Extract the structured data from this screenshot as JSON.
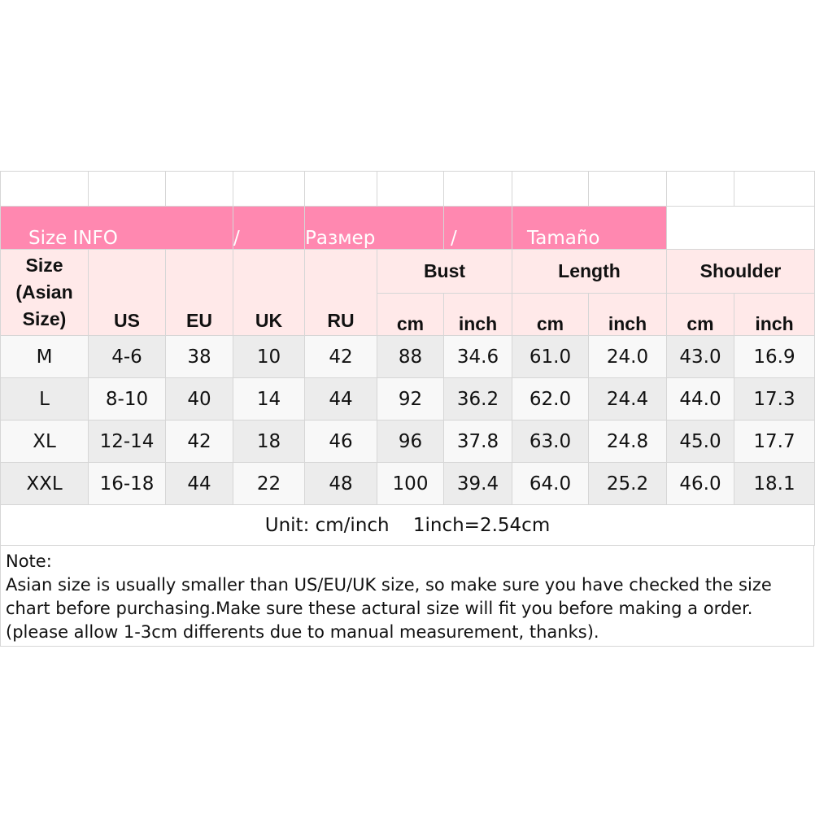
{
  "banner": {
    "left": "Size INFO",
    "sep1": "/",
    "mid": "Размер",
    "sep2": "/",
    "right": "Tamaño"
  },
  "headers": {
    "size": "Size (Asian Size)",
    "us": "US",
    "eu": "EU",
    "uk": "UK",
    "ru": "RU",
    "bust": "Bust",
    "length": "Length",
    "shoulder": "Shoulder",
    "cm": "cm",
    "inch": "inch"
  },
  "rows": [
    [
      "M",
      "4-6",
      "38",
      "10",
      "42",
      "88",
      "34.6",
      "61.0",
      "24.0",
      "43.0",
      "16.9"
    ],
    [
      "L",
      "8-10",
      "40",
      "14",
      "44",
      "92",
      "36.2",
      "62.0",
      "24.4",
      "44.0",
      "17.3"
    ],
    [
      "XL",
      "12-14",
      "42",
      "18",
      "46",
      "96",
      "37.8",
      "63.0",
      "24.8",
      "45.0",
      "17.7"
    ],
    [
      "XXL",
      "16-18",
      "44",
      "22",
      "48",
      "100",
      "39.4",
      "64.0",
      "25.2",
      "46.0",
      "18.1"
    ]
  ],
  "unit": "Unit: cm/inch    1inch=2.54cm",
  "note": {
    "title": "Note:",
    "text": "Asian size is usually smaller than US/EU/UK size, so make sure you have checked the size chart before purchasing.Make sure these actural size will fit you before making a order.(please allow 1-3cm differents due to manual measurement, thanks)."
  },
  "colors": {
    "banner": "#ff88b0",
    "header": "#ffe9e9"
  }
}
